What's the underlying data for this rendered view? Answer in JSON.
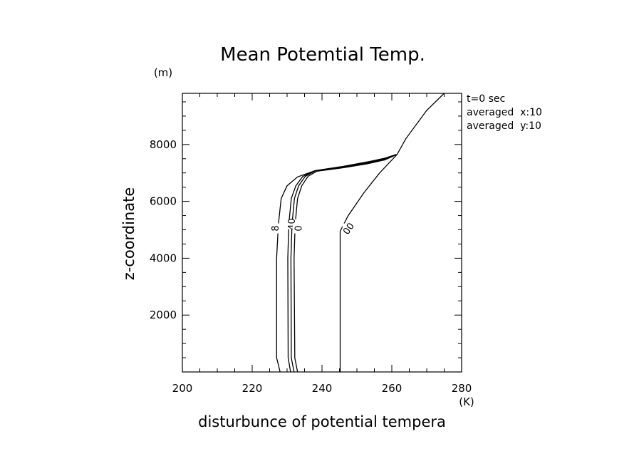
{
  "chart_data": {
    "type": "line",
    "title": "Mean Potemtial Temp.",
    "xlabel": "disturbunce of potential tempera",
    "ylabel": "z-coordinate",
    "x_unit": "(K)",
    "y_unit": "(m)",
    "xlim": [
      200,
      280
    ],
    "ylim": [
      0,
      9800
    ],
    "x_ticks": [
      200,
      220,
      240,
      260,
      280
    ],
    "y_ticks": [
      2000,
      4000,
      6000,
      8000
    ],
    "grid": false,
    "annotations": [
      "t=0 sec",
      "averaged  x:10",
      "averaged  y:10"
    ],
    "series": [
      {
        "label": "00",
        "values": [
          [
            245.2,
            0
          ],
          [
            245.2,
            4950
          ],
          [
            247.5,
            5500
          ],
          [
            252,
            6300
          ],
          [
            256.5,
            7000
          ],
          [
            261.5,
            7650
          ],
          [
            264,
            8200
          ],
          [
            270,
            9200
          ],
          [
            275,
            9800
          ]
        ]
      },
      {
        "label": "8",
        "values": [
          [
            228,
            0
          ],
          [
            227,
            500
          ],
          [
            227,
            4000
          ],
          [
            227.5,
            5200
          ],
          [
            228.3,
            6100
          ],
          [
            230,
            6550
          ],
          [
            233,
            6860
          ],
          [
            238,
            7080
          ],
          [
            246,
            7230
          ],
          [
            253,
            7390
          ],
          [
            258,
            7520
          ],
          [
            261.3,
            7650
          ]
        ]
      },
      {
        "label": "40",
        "values": [
          [
            231,
            0
          ],
          [
            230.3,
            500
          ],
          [
            230.2,
            4000
          ],
          [
            230.5,
            5200
          ],
          [
            231.2,
            6100
          ],
          [
            232.5,
            6550
          ],
          [
            234.5,
            6880
          ],
          [
            238,
            7080
          ],
          [
            246,
            7220
          ],
          [
            253,
            7360
          ],
          [
            258,
            7500
          ],
          [
            261.3,
            7650
          ]
        ]
      },
      {
        "values": [
          [
            232,
            0
          ],
          [
            231.2,
            500
          ],
          [
            231.1,
            4000
          ],
          [
            231.4,
            5200
          ],
          [
            232.1,
            6100
          ],
          [
            233.3,
            6550
          ],
          [
            235.2,
            6880
          ],
          [
            238,
            7070
          ],
          [
            246,
            7200
          ],
          [
            253,
            7340
          ],
          [
            258,
            7480
          ],
          [
            261.3,
            7640
          ]
        ]
      },
      {
        "label": "0",
        "values": [
          [
            233,
            0
          ],
          [
            232.2,
            500
          ],
          [
            232,
            4000
          ],
          [
            232.3,
            5200
          ],
          [
            233,
            6100
          ],
          [
            234.2,
            6550
          ],
          [
            236,
            6880
          ],
          [
            238.5,
            7060
          ],
          [
            246,
            7180
          ],
          [
            253,
            7320
          ],
          [
            258,
            7460
          ],
          [
            261.3,
            7640
          ]
        ]
      }
    ]
  }
}
